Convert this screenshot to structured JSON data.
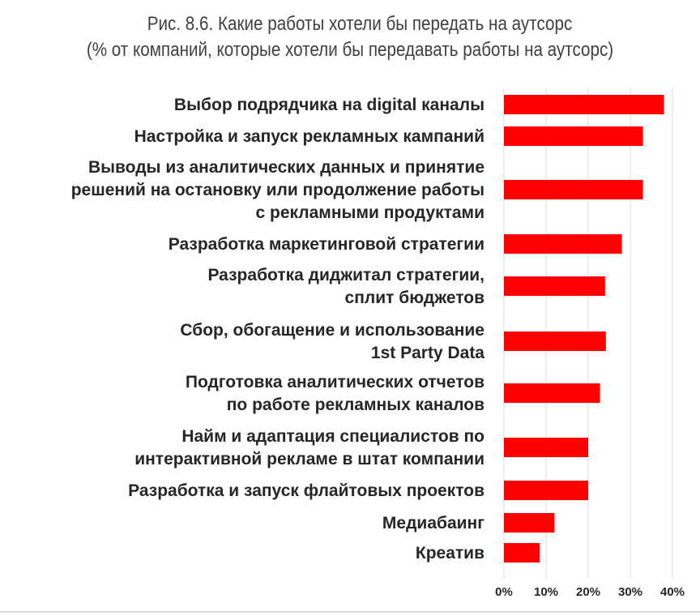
{
  "title_line1": "Рис. 8.6. Какие работы хотели бы передать на аутсорс",
  "title_line2": "(% от компаний, которые хотели бы передавать работы на аутсорс)",
  "colors": {
    "bar": "#ff0000",
    "grid": "#d9d9d9",
    "text": "#262626",
    "title": "#404040"
  },
  "chart_data": {
    "type": "bar",
    "orientation": "horizontal",
    "title": "Рис. 8.6. Какие работы хотели бы передать на аутсорс",
    "subtitle": "(% от компаний, которые хотели бы передавать работы на аутсорс)",
    "xlim": [
      0,
      40
    ],
    "xticks": [
      "0%",
      "10%",
      "20%",
      "30%",
      "40%"
    ],
    "grid": "vertical",
    "categories": [
      [
        "Выбор подрядчика на digital каналы"
      ],
      [
        "Настройка и запуск рекламных кампаний"
      ],
      [
        "Выводы из аналитических данных и принятие",
        "решений на остановку или продолжение работы",
        "с рекламными продуктами"
      ],
      [
        "Разработка маркетинговой стратегии"
      ],
      [
        "Разработка диджитал стратегии,",
        "сплит бюджетов"
      ],
      [
        "Сбор, обогащение и использование",
        "1st Party Data"
      ],
      [
        "Подготовка аналитических отчетов",
        "по работе рекламных каналов"
      ],
      [
        "Найм и адаптация специалистов по",
        "интерактивной рекламе в штат компании"
      ],
      [
        "Разработка и запуск флайтовых проектов"
      ],
      [
        "Медиабаинг"
      ],
      [
        "Креатив"
      ]
    ],
    "values": [
      38,
      33,
      33,
      28,
      24,
      24.2,
      22.8,
      20,
      20,
      12,
      8.5
    ]
  }
}
